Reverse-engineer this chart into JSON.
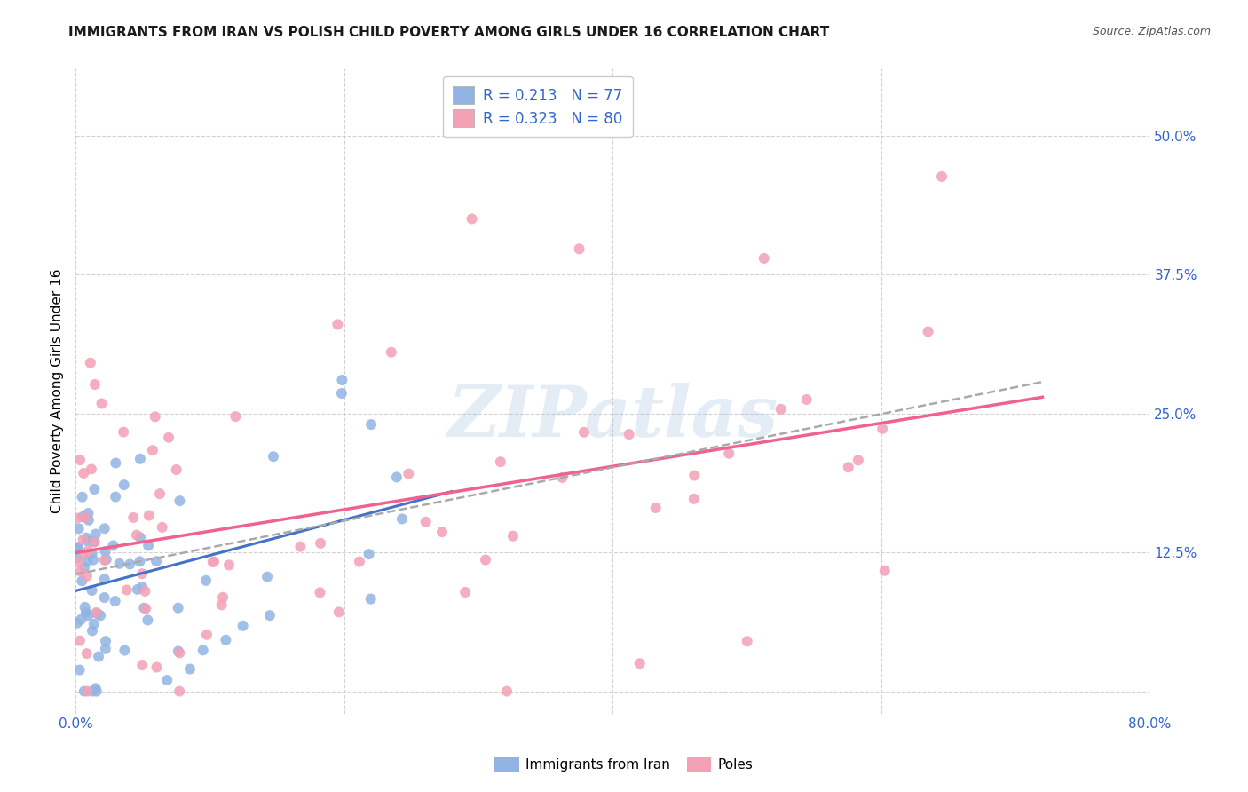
{
  "title": "IMMIGRANTS FROM IRAN VS POLISH CHILD POVERTY AMONG GIRLS UNDER 16 CORRELATION CHART",
  "source": "Source: ZipAtlas.com",
  "ylabel": "Child Poverty Among Girls Under 16",
  "xlim": [
    0.0,
    0.8
  ],
  "ylim": [
    -0.02,
    0.56
  ],
  "iran_color": "#92b4e3",
  "poles_color": "#f4a0b5",
  "iran_line_color": "#4472c4",
  "poles_line_color": "#f06090",
  "dashed_line_color": "#aaaaaa",
  "background_color": "#ffffff",
  "grid_color": "#cccccc",
  "title_fontsize": 11,
  "watermark_text": "ZIPatlas",
  "legend_iran_r": "0.213",
  "legend_iran_n": "77",
  "legend_poles_r": "0.323",
  "legend_poles_n": "80",
  "tick_color": "#3366cc"
}
